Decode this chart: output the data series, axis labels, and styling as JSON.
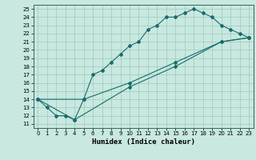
{
  "xlabel": "Humidex (Indice chaleur)",
  "xlim": [
    -0.5,
    23.5
  ],
  "ylim": [
    10.5,
    25.5
  ],
  "yticks": [
    11,
    12,
    13,
    14,
    15,
    16,
    17,
    18,
    19,
    20,
    21,
    22,
    23,
    24,
    25
  ],
  "xticks": [
    0,
    1,
    2,
    3,
    4,
    5,
    6,
    7,
    8,
    9,
    10,
    11,
    12,
    13,
    14,
    15,
    16,
    17,
    18,
    19,
    20,
    21,
    22,
    23
  ],
  "bg_color": "#c8e8e0",
  "grid_color": "#99ccbb",
  "line_color": "#1a6b6b",
  "line1_x": [
    0,
    1,
    2,
    3,
    4,
    5,
    6,
    7,
    8,
    9,
    10,
    11,
    12,
    13,
    14,
    15,
    16,
    17,
    18,
    19,
    20,
    21,
    22,
    23
  ],
  "line1_y": [
    14,
    13,
    12,
    12,
    11.5,
    14,
    17,
    17.5,
    18.5,
    19.5,
    20.5,
    21,
    22.5,
    23,
    24,
    24,
    24.5,
    25,
    24.5,
    24,
    23,
    22.5,
    22,
    21.5
  ],
  "line2_x": [
    0,
    4,
    10,
    15,
    20,
    23
  ],
  "line2_y": [
    14,
    11.5,
    15.5,
    18,
    21,
    21.5
  ],
  "line3_x": [
    0,
    5,
    10,
    15,
    20,
    23
  ],
  "line3_y": [
    14,
    14,
    16,
    18.5,
    21,
    21.5
  ]
}
